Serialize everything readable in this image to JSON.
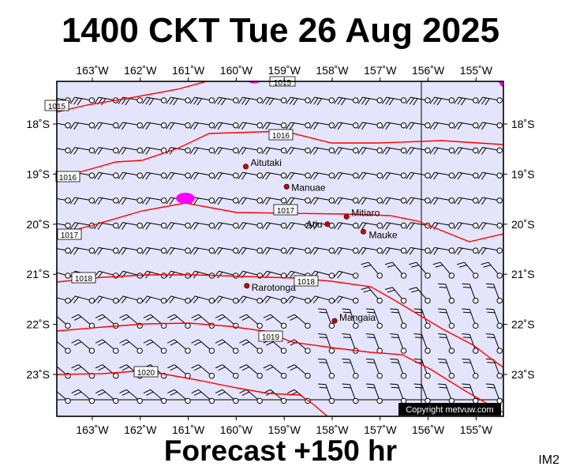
{
  "title": "1400 CKT Tue 26 Aug 2025",
  "forecast_label": "Forecast +150 hr",
  "model_label": "IM2",
  "copyright": "Copyright metvuw.com",
  "colors": {
    "ocean": "#e4e4fa",
    "isobar": "#ff0000",
    "land": "#ff00ff",
    "place_dot": "#cc0000",
    "frame": "#000000"
  },
  "longitude_labels": [
    "163˚W",
    "162˚W",
    "161˚W",
    "160˚W",
    "159˚W",
    "158˚W",
    "157˚W",
    "156˚W",
    "155˚W"
  ],
  "latitude_labels": [
    "18˚S",
    "19˚S",
    "20˚S",
    "21˚S",
    "22˚S",
    "23˚S"
  ],
  "places": [
    {
      "name": "Aitutaki",
      "lon": -159.8,
      "lat": -18.85
    },
    {
      "name": "Manuae",
      "lon": -158.95,
      "lat": -19.25
    },
    {
      "name": "Mitiaro",
      "lon": -157.7,
      "lat": -19.85
    },
    {
      "name": "Atiu",
      "lon": -158.1,
      "lat": -20.0
    },
    {
      "name": "Mauke",
      "lon": -157.35,
      "lat": -20.15
    },
    {
      "name": "Rarotonga",
      "lon": -159.78,
      "lat": -21.23
    },
    {
      "name": "Mangaia",
      "lon": -157.95,
      "lat": -21.93
    }
  ],
  "isobars": [
    {
      "label": "1015"
    },
    {
      "label": "1016"
    },
    {
      "label": "1017"
    },
    {
      "label": "1018"
    },
    {
      "label": "1019"
    },
    {
      "label": "1020"
    }
  ],
  "wind_field": {
    "description": "wind barbs on regular 0.5 degree grid"
  }
}
